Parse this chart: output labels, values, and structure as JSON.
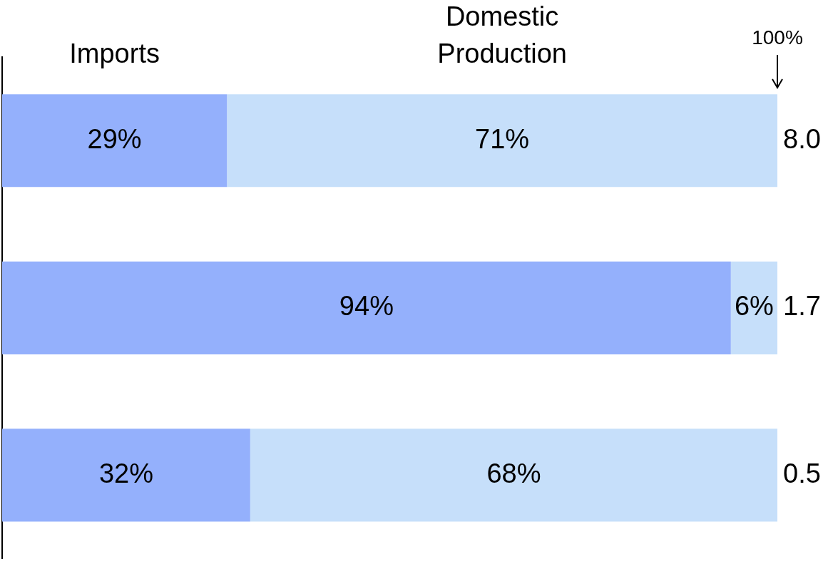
{
  "chart_data": {
    "type": "bar",
    "orientation": "horizontal",
    "stacked": true,
    "categories": [
      null,
      null,
      null
    ],
    "series": [
      {
        "name": "Imports",
        "color": "#94b0fc",
        "values": [
          29,
          94,
          32
        ],
        "value_labels": [
          "29%",
          "94%",
          "32%"
        ]
      },
      {
        "name": "Domestic Production",
        "color": "#c6dffa",
        "values": [
          71,
          6,
          68
        ],
        "value_labels": [
          "71%",
          "6%",
          "68%"
        ]
      }
    ],
    "xlim": [
      0,
      100
    ],
    "annotations": [
      {
        "text": "100%",
        "x": 100
      },
      "8.0",
      "1.7",
      "0.5"
    ],
    "legend": false
  }
}
